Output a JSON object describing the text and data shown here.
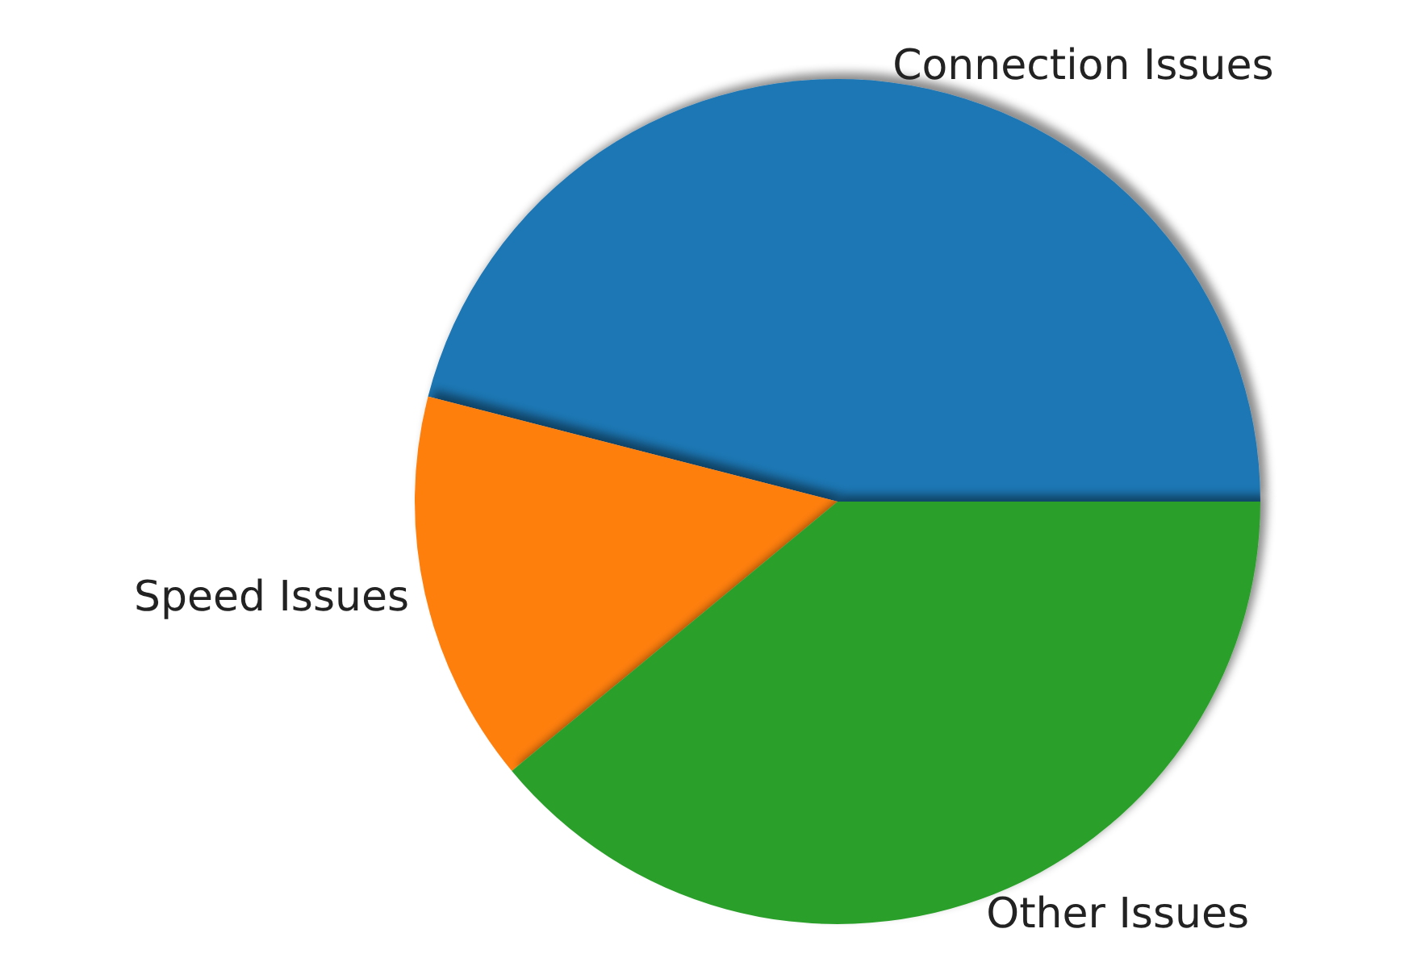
{
  "chart_data": {
    "type": "pie",
    "categories": [
      "Connection Issues",
      "Speed Issues",
      "Other Issues"
    ],
    "values": [
      46,
      15,
      39
    ],
    "colors": [
      "#1f77b4",
      "#ff7f0e",
      "#2ca02c"
    ],
    "legend": false
  }
}
